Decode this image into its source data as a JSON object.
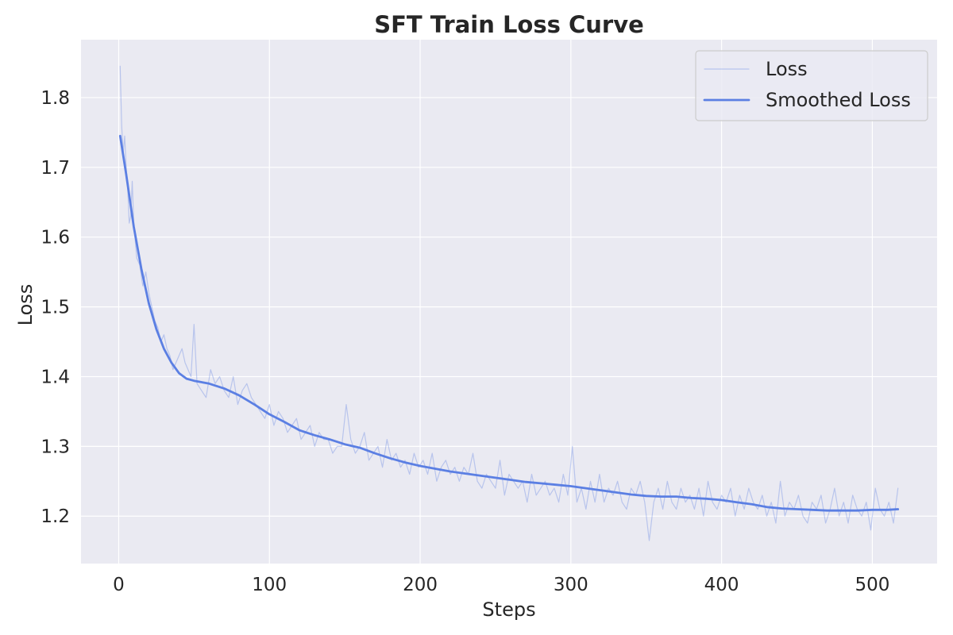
{
  "chart_data": {
    "type": "line",
    "title": "SFT Train Loss Curve",
    "xlabel": "Steps",
    "ylabel": "Loss",
    "xlim": [
      -25,
      543
    ],
    "ylim": [
      1.132,
      1.883
    ],
    "xticks": [
      0,
      100,
      200,
      300,
      400,
      500
    ],
    "yticks": [
      1.2,
      1.3,
      1.4,
      1.5,
      1.6,
      1.7,
      1.8
    ],
    "grid": true,
    "legend_position": "top-right",
    "series": [
      {
        "name": "Loss",
        "color": "#5b7fe3",
        "opacity": 0.35,
        "line_width": 1.2,
        "x": [
          1,
          2,
          3,
          4,
          5,
          6,
          7,
          8,
          9,
          10,
          12,
          14,
          16,
          18,
          20,
          22,
          24,
          26,
          28,
          30,
          32,
          34,
          36,
          38,
          40,
          42,
          44,
          46,
          48,
          50,
          52,
          55,
          58,
          61,
          64,
          67,
          70,
          73,
          76,
          79,
          82,
          85,
          88,
          91,
          94,
          97,
          100,
          103,
          106,
          109,
          112,
          115,
          118,
          121,
          124,
          127,
          130,
          133,
          136,
          139,
          142,
          145,
          148,
          151,
          154,
          157,
          160,
          163,
          166,
          169,
          172,
          175,
          178,
          181,
          184,
          187,
          190,
          193,
          196,
          199,
          202,
          205,
          208,
          211,
          214,
          217,
          220,
          223,
          226,
          229,
          232,
          235,
          238,
          241,
          244,
          247,
          250,
          253,
          256,
          259,
          262,
          265,
          268,
          271,
          274,
          277,
          280,
          283,
          286,
          289,
          292,
          295,
          298,
          301,
          304,
          307,
          310,
          313,
          316,
          319,
          322,
          325,
          328,
          331,
          334,
          337,
          340,
          343,
          346,
          349,
          352,
          355,
          358,
          361,
          364,
          367,
          370,
          373,
          376,
          379,
          382,
          385,
          388,
          391,
          394,
          397,
          400,
          403,
          406,
          409,
          412,
          415,
          418,
          421,
          424,
          427,
          430,
          433,
          436,
          439,
          442,
          445,
          448,
          451,
          454,
          457,
          460,
          463,
          466,
          469,
          472,
          475,
          478,
          481,
          484,
          487,
          490,
          493,
          496,
          499,
          502,
          505,
          508,
          511,
          514,
          517
        ],
        "y": [
          1.845,
          1.76,
          1.72,
          1.745,
          1.7,
          1.67,
          1.62,
          1.63,
          1.68,
          1.62,
          1.57,
          1.56,
          1.53,
          1.55,
          1.52,
          1.5,
          1.48,
          1.47,
          1.45,
          1.46,
          1.44,
          1.43,
          1.41,
          1.42,
          1.43,
          1.44,
          1.42,
          1.41,
          1.4,
          1.475,
          1.39,
          1.38,
          1.37,
          1.41,
          1.39,
          1.4,
          1.38,
          1.37,
          1.4,
          1.36,
          1.38,
          1.39,
          1.37,
          1.36,
          1.35,
          1.34,
          1.36,
          1.33,
          1.35,
          1.34,
          1.32,
          1.33,
          1.34,
          1.31,
          1.32,
          1.33,
          1.3,
          1.32,
          1.31,
          1.31,
          1.29,
          1.3,
          1.3,
          1.36,
          1.31,
          1.29,
          1.3,
          1.32,
          1.28,
          1.29,
          1.3,
          1.27,
          1.31,
          1.28,
          1.29,
          1.27,
          1.28,
          1.26,
          1.29,
          1.27,
          1.28,
          1.26,
          1.29,
          1.25,
          1.27,
          1.28,
          1.26,
          1.27,
          1.25,
          1.27,
          1.26,
          1.29,
          1.25,
          1.24,
          1.26,
          1.25,
          1.24,
          1.28,
          1.23,
          1.26,
          1.25,
          1.24,
          1.25,
          1.22,
          1.26,
          1.23,
          1.24,
          1.25,
          1.23,
          1.24,
          1.22,
          1.26,
          1.23,
          1.3,
          1.22,
          1.24,
          1.21,
          1.25,
          1.22,
          1.26,
          1.22,
          1.24,
          1.23,
          1.25,
          1.22,
          1.21,
          1.24,
          1.23,
          1.25,
          1.22,
          1.165,
          1.22,
          1.24,
          1.21,
          1.25,
          1.22,
          1.21,
          1.24,
          1.22,
          1.23,
          1.21,
          1.24,
          1.2,
          1.25,
          1.22,
          1.21,
          1.23,
          1.22,
          1.24,
          1.2,
          1.23,
          1.21,
          1.24,
          1.22,
          1.21,
          1.23,
          1.2,
          1.22,
          1.19,
          1.25,
          1.2,
          1.22,
          1.21,
          1.23,
          1.2,
          1.19,
          1.22,
          1.21,
          1.23,
          1.19,
          1.21,
          1.24,
          1.2,
          1.22,
          1.19,
          1.23,
          1.21,
          1.2,
          1.22,
          1.18,
          1.24,
          1.21,
          1.2,
          1.22,
          1.19,
          1.24
        ]
      },
      {
        "name": "Smoothed Loss",
        "color": "#5b7fe3",
        "opacity": 1,
        "line_width": 2.8,
        "x": [
          1,
          5,
          10,
          15,
          20,
          25,
          30,
          35,
          40,
          45,
          50,
          60,
          70,
          80,
          90,
          100,
          110,
          120,
          130,
          140,
          150,
          160,
          170,
          180,
          190,
          200,
          210,
          220,
          230,
          240,
          250,
          260,
          270,
          280,
          290,
          300,
          310,
          320,
          330,
          340,
          350,
          360,
          370,
          380,
          390,
          400,
          410,
          420,
          430,
          440,
          450,
          460,
          470,
          480,
          490,
          500,
          510,
          517
        ],
        "y": [
          1.745,
          1.69,
          1.615,
          1.555,
          1.505,
          1.468,
          1.44,
          1.42,
          1.405,
          1.397,
          1.394,
          1.39,
          1.383,
          1.373,
          1.36,
          1.346,
          1.335,
          1.323,
          1.316,
          1.31,
          1.303,
          1.298,
          1.29,
          1.283,
          1.277,
          1.272,
          1.268,
          1.264,
          1.261,
          1.258,
          1.255,
          1.252,
          1.249,
          1.247,
          1.245,
          1.243,
          1.24,
          1.237,
          1.234,
          1.231,
          1.229,
          1.228,
          1.228,
          1.226,
          1.225,
          1.223,
          1.22,
          1.217,
          1.213,
          1.211,
          1.21,
          1.209,
          1.208,
          1.208,
          1.208,
          1.209,
          1.209,
          1.21
        ]
      }
    ]
  }
}
